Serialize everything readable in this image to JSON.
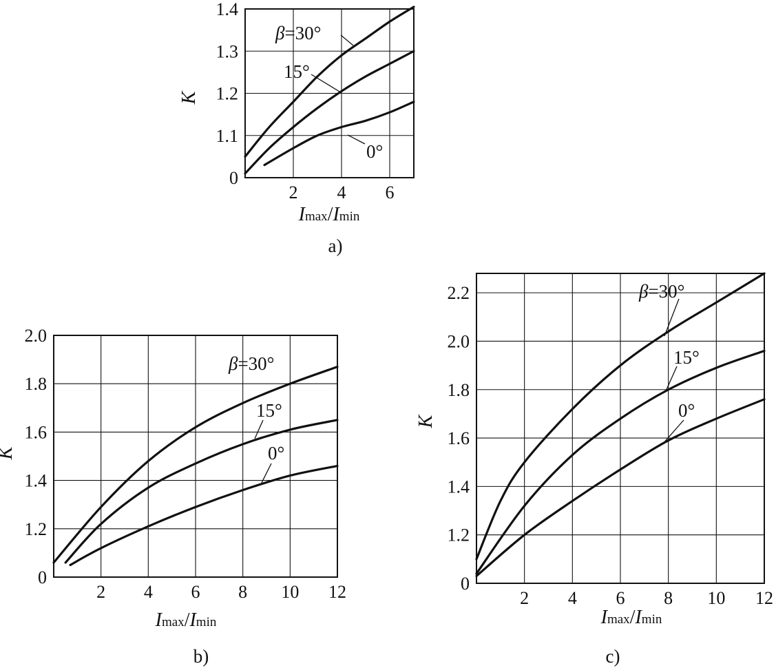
{
  "chart_data": [
    {
      "type": "line",
      "panel_label": "a)",
      "xlabel": {
        "main": "I",
        "sub1": "max",
        "slash": "/",
        "main2": "I",
        "sub2": "min"
      },
      "ylabel": "K",
      "xlim": [
        0,
        7
      ],
      "ylim": [
        1.0,
        1.4
      ],
      "xticks": [
        2,
        4,
        6
      ],
      "yticks": [
        1.1,
        1.2,
        1.3,
        1.4
      ],
      "ytick_labels": [
        "0",
        "1.1",
        "1.2",
        "1.3",
        "1.4"
      ],
      "grid": true,
      "series": [
        {
          "name": "β=30°",
          "x": [
            0,
            1,
            2,
            3,
            4,
            5,
            6,
            7
          ],
          "y": [
            1.05,
            1.12,
            1.18,
            1.24,
            1.29,
            1.33,
            1.37,
            1.405
          ]
        },
        {
          "name": "15°",
          "x": [
            0,
            1,
            2,
            3,
            4,
            5,
            6,
            7
          ],
          "y": [
            1.01,
            1.07,
            1.12,
            1.165,
            1.205,
            1.24,
            1.27,
            1.3
          ]
        },
        {
          "name": "0°",
          "x": [
            0.8,
            2,
            3,
            4,
            5,
            6,
            7
          ],
          "y": [
            1.03,
            1.07,
            1.1,
            1.12,
            1.135,
            1.155,
            1.18
          ]
        }
      ]
    },
    {
      "type": "line",
      "panel_label": "b)",
      "xlabel": {
        "main": "I",
        "sub1": "max",
        "slash": "/",
        "main2": "I",
        "sub2": "min"
      },
      "ylabel": "K",
      "xlim": [
        0,
        12
      ],
      "ylim": [
        1.0,
        2.0
      ],
      "xticks": [
        2,
        4,
        6,
        8,
        10,
        12
      ],
      "yticks": [
        1.2,
        1.4,
        1.6,
        1.8,
        2.0
      ],
      "ytick_labels": [
        "0",
        "1.2",
        "1.4",
        "1.6",
        "1.8",
        "2.0"
      ],
      "grid": true,
      "series": [
        {
          "name": "β=30°",
          "x": [
            0,
            2,
            4,
            6,
            8,
            10,
            12
          ],
          "y": [
            1.06,
            1.29,
            1.48,
            1.62,
            1.72,
            1.8,
            1.87
          ]
        },
        {
          "name": "15°",
          "x": [
            0.5,
            2,
            4,
            6,
            8,
            10,
            12
          ],
          "y": [
            1.06,
            1.22,
            1.37,
            1.47,
            1.55,
            1.61,
            1.65
          ]
        },
        {
          "name": "0°",
          "x": [
            0.7,
            2,
            4,
            6,
            8,
            10,
            12
          ],
          "y": [
            1.05,
            1.12,
            1.21,
            1.29,
            1.36,
            1.42,
            1.46
          ]
        }
      ]
    },
    {
      "type": "line",
      "panel_label": "c)",
      "xlabel": {
        "main": "I",
        "sub1": "max",
        "slash": "/",
        "main2": "I",
        "sub2": "min"
      },
      "ylabel": "K",
      "xlim": [
        0,
        12
      ],
      "ylim": [
        1.0,
        2.28
      ],
      "xticks": [
        2,
        4,
        6,
        8,
        10,
        12
      ],
      "yticks": [
        1.2,
        1.4,
        1.6,
        1.8,
        2.0,
        2.2
      ],
      "ytick_labels": [
        "0",
        "1.2",
        "1.4",
        "1.6",
        "1.8",
        "2.0",
        "2.2"
      ],
      "grid": true,
      "series": [
        {
          "name": "β=30°",
          "x": [
            0,
            1,
            2,
            4,
            6,
            8,
            10,
            12
          ],
          "y": [
            1.1,
            1.34,
            1.5,
            1.72,
            1.9,
            2.04,
            2.16,
            2.28
          ]
        },
        {
          "name": "15°",
          "x": [
            0,
            2,
            4,
            6,
            8,
            10,
            12
          ],
          "y": [
            1.04,
            1.32,
            1.53,
            1.68,
            1.8,
            1.89,
            1.96
          ]
        },
        {
          "name": "0°",
          "x": [
            0,
            2,
            4,
            6,
            8,
            10,
            12
          ],
          "y": [
            1.03,
            1.2,
            1.34,
            1.47,
            1.59,
            1.68,
            1.76
          ]
        }
      ]
    }
  ]
}
